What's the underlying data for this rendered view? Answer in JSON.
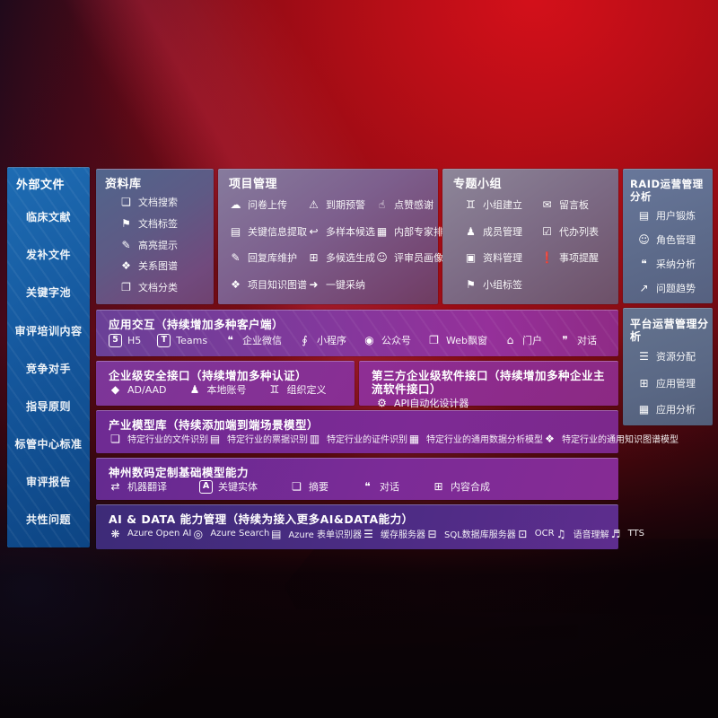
{
  "colors": {
    "background_red": "#a80d17",
    "sidebar_blue": "#15589e",
    "panel_slate": "#5e6b8a",
    "row_purple": "#7b2b97",
    "row_indigo": "#3d2b78",
    "text": "#ffffff"
  },
  "sidebar": {
    "title": "外部文件",
    "items": [
      {
        "label": "临床文献"
      },
      {
        "label": "发补文件"
      },
      {
        "label": "关键字池"
      },
      {
        "label": "审评培训内容"
      },
      {
        "label": "竞争对手"
      },
      {
        "label": "指导原则"
      },
      {
        "label": "标管中心标准"
      },
      {
        "label": "审评报告"
      },
      {
        "label": "共性问题"
      }
    ]
  },
  "panels": {
    "ziliao": {
      "title": "资料库",
      "items": [
        {
          "label": "文档搜索",
          "icon": "doc-search"
        },
        {
          "label": "文档标签",
          "icon": "doc-tag"
        },
        {
          "label": "高亮提示",
          "icon": "highlight"
        },
        {
          "label": "关系图谱",
          "icon": "relation-graph"
        },
        {
          "label": "文档分类",
          "icon": "doc-category"
        }
      ]
    },
    "project": {
      "title": "项目管理",
      "items": [
        {
          "label": "问卷上传",
          "icon": "cloud-upload"
        },
        {
          "label": "到期预警",
          "icon": "expiry-alert"
        },
        {
          "label": "点赞感谢",
          "icon": "thumbs-up"
        },
        {
          "label": "关键信息提取",
          "icon": "key-info"
        },
        {
          "label": "多样本候选",
          "icon": "multi-sample"
        },
        {
          "label": "内部专家排名",
          "icon": "expert-rank"
        },
        {
          "label": "回复库维护",
          "icon": "reply-lib"
        },
        {
          "label": "多候选生成",
          "icon": "multi-generate"
        },
        {
          "label": "评审员画像",
          "icon": "reviewer-profile"
        },
        {
          "label": "项目知识图谱",
          "icon": "knowledge-graph"
        },
        {
          "label": "一键采纳",
          "icon": "one-click-adopt"
        }
      ]
    },
    "group": {
      "title": "专题小组",
      "items": [
        {
          "label": "小组建立",
          "icon": "group-create"
        },
        {
          "label": "留言板",
          "icon": "message-board"
        },
        {
          "label": "成员管理",
          "icon": "member-manage"
        },
        {
          "label": "代办列表",
          "icon": "todo-list"
        },
        {
          "label": "资料管理",
          "icon": "material-manage"
        },
        {
          "label": "事项提醒",
          "icon": "reminder"
        },
        {
          "label": "小组标签",
          "icon": "group-tag"
        }
      ]
    },
    "raid": {
      "title": "RAID运营管理分析",
      "items": [
        {
          "label": "用户锻炼",
          "icon": "user-card"
        },
        {
          "label": "角色管理",
          "icon": "role-manage"
        },
        {
          "label": "采纳分析",
          "icon": "adopt-analysis"
        },
        {
          "label": "问题趋势",
          "icon": "issue-trend"
        }
      ]
    },
    "platform": {
      "title": "平台运营管理分析",
      "items": [
        {
          "label": "资源分配",
          "icon": "resource-alloc"
        },
        {
          "label": "应用管理",
          "icon": "app-manage"
        },
        {
          "label": "应用分析",
          "icon": "app-analysis"
        }
      ]
    },
    "interaction": {
      "title": "应用交互（持续增加多种客户端）",
      "items": [
        {
          "label": "H5",
          "icon": "h5"
        },
        {
          "label": "Teams",
          "icon": "teams"
        },
        {
          "label": "企业微信",
          "icon": "wechat-work"
        },
        {
          "label": "小程序",
          "icon": "mini-program"
        },
        {
          "label": "公众号",
          "icon": "official-account"
        },
        {
          "label": "Web飘窗",
          "icon": "web-popup"
        },
        {
          "label": "门户",
          "icon": "portal"
        },
        {
          "label": "对话",
          "icon": "dialog"
        }
      ]
    },
    "security": {
      "title": "企业级安全接口（持续增加多种认证）",
      "items": [
        {
          "label": "AD/AAD",
          "icon": "ad-aad"
        },
        {
          "label": "本地账号",
          "icon": "local-account"
        },
        {
          "label": "组织定义",
          "icon": "org-define"
        }
      ]
    },
    "thirdparty": {
      "title": "第三方企业级软件接口（持续增加多种企业主流软件接口）",
      "items": [
        {
          "label": "API自动化设计器",
          "icon": "api-designer"
        }
      ]
    },
    "industry": {
      "title": "产业模型库（持续添加端到端场景模型）",
      "items": [
        {
          "label": "特定行业的文件识别",
          "icon": "file-recog"
        },
        {
          "label": "特定行业的票据识别",
          "icon": "receipt-recog"
        },
        {
          "label": "特定行业的证件识别",
          "icon": "id-recog"
        },
        {
          "label": "特定行业的通用数据分析模型",
          "icon": "data-model"
        },
        {
          "label": "特定行业的通用知识图谱模型",
          "icon": "kg-model"
        }
      ]
    },
    "dcits": {
      "title": "神州数码定制基础模型能力",
      "items": [
        {
          "label": "机器翻译",
          "icon": "translate"
        },
        {
          "label": "关键实体",
          "icon": "key-entity"
        },
        {
          "label": "摘要",
          "icon": "summary"
        },
        {
          "label": "对话",
          "icon": "chat"
        },
        {
          "label": "内容合成",
          "icon": "content-compose"
        }
      ]
    },
    "aidata": {
      "title": "AI & DATA 能力管理（持续为接入更多AI&DATA能力）",
      "items": [
        {
          "label": "Azure Open AI",
          "icon": "openai"
        },
        {
          "label": "Azure Search",
          "icon": "azure-search"
        },
        {
          "label": "Azure 表单识别器",
          "icon": "form-recog"
        },
        {
          "label": "缓存服务器",
          "icon": "cache-server"
        },
        {
          "label": "SQL数据库服务器",
          "icon": "sql-server"
        },
        {
          "label": "OCR",
          "icon": "ocr"
        },
        {
          "label": "语音理解",
          "icon": "speech"
        },
        {
          "label": "TTS",
          "icon": "tts"
        }
      ]
    }
  }
}
